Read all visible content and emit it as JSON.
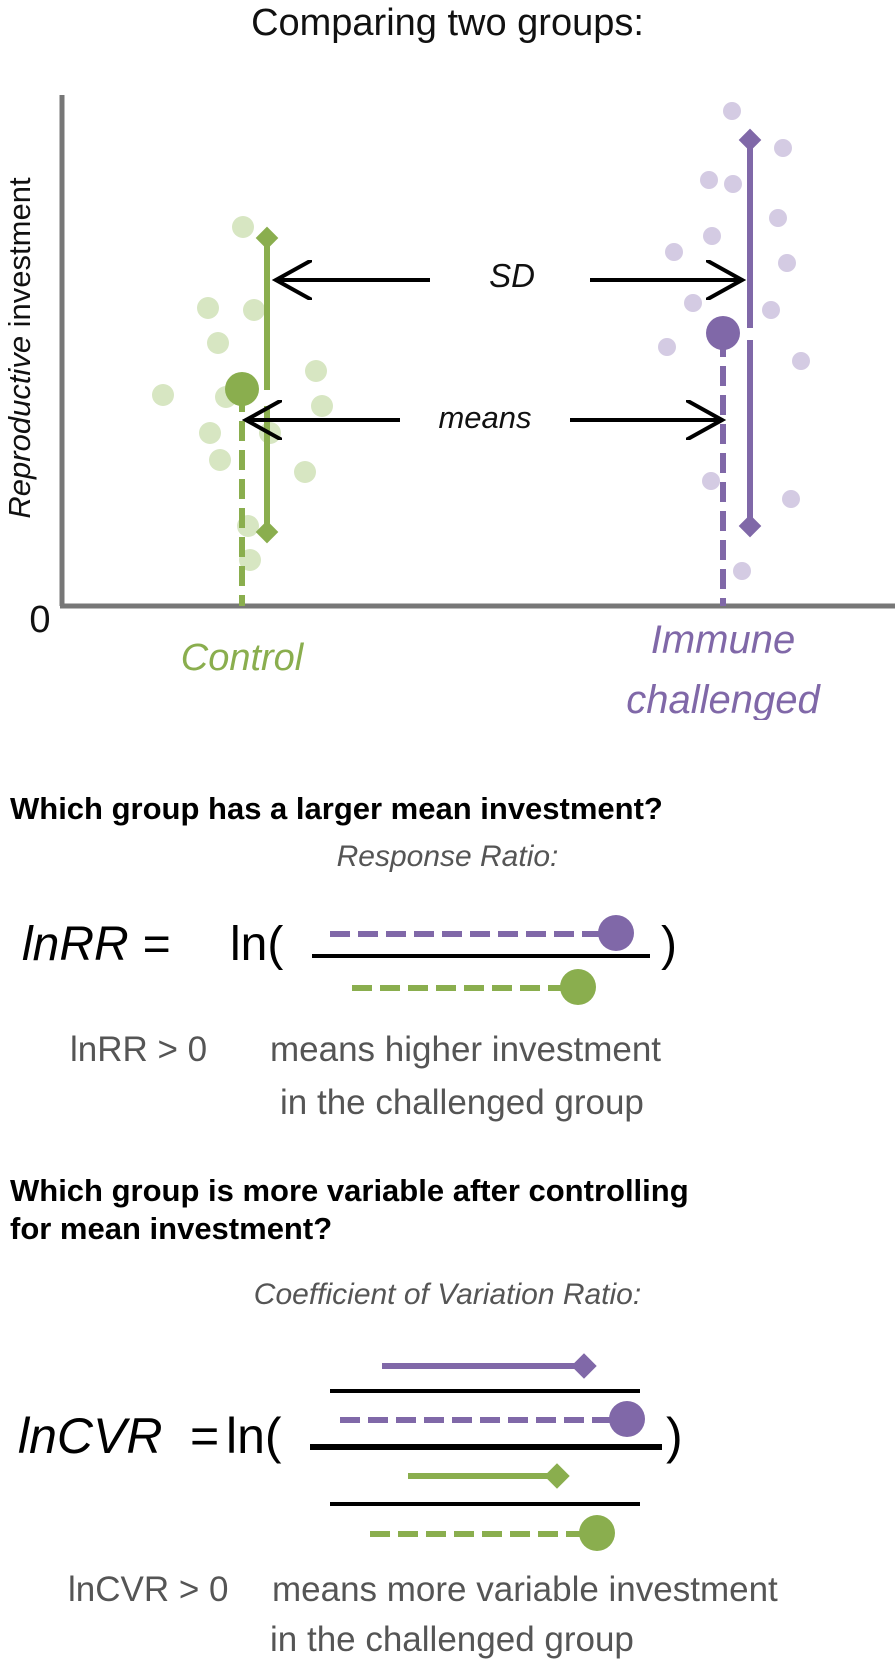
{
  "title": "Comparing two groups:",
  "colors": {
    "control": "#8aae4e",
    "control_light": "#d7e6c2",
    "immune": "#8068a8",
    "immune_light": "#d4cbe3",
    "axis": "#777777",
    "text_gray": "#555555"
  },
  "chart": {
    "ylabel_italic": "Reproductive",
    "ylabel_rest": " investment",
    "zero_label": "0",
    "groups": [
      {
        "label_line1": "Control",
        "label_line2": ""
      },
      {
        "label_line1": "Immune",
        "label_line2": "challenged"
      }
    ],
    "sd_label": "SD",
    "means_label": "means"
  },
  "section1": {
    "question": "Which group has a larger mean investment?",
    "subtitle": "Response Ratio:",
    "formula_lhs": "lnRR =",
    "formula_ln": "ln(",
    "formula_close": ")",
    "note_lhs": "lnRR > 0",
    "note_line1": "means higher investment",
    "note_line2": "in the challenged group"
  },
  "section2": {
    "question_line1": "Which group is more variable after controlling",
    "question_line2": "for mean investment?",
    "subtitle": "Coefficient of Variation Ratio:",
    "formula_lhs": "lnCVR",
    "formula_eq": "=",
    "formula_ln": "ln(",
    "formula_close": ")",
    "note_lhs": "lnCVR > 0",
    "note_line1": "means more variable investment",
    "note_line2": "in the challenged group"
  }
}
